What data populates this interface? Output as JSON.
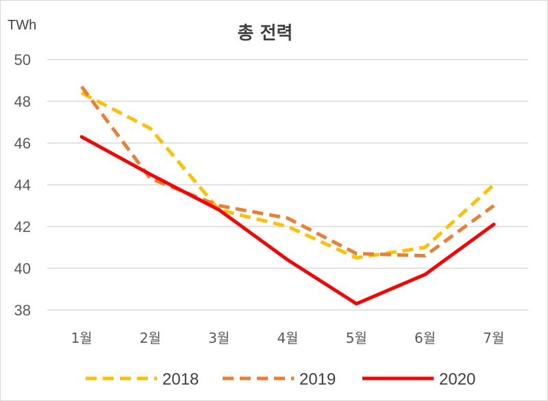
{
  "chart_data": {
    "type": "line",
    "title": "총 전력",
    "ylabel": "TWh",
    "xlabel": "",
    "ylim": [
      38,
      50
    ],
    "yticks": [
      38,
      40,
      42,
      44,
      46,
      48,
      50
    ],
    "categories": [
      "1월",
      "2월",
      "3월",
      "4월",
      "5월",
      "6월",
      "7월"
    ],
    "grid": "horizontal",
    "legend": "bottom",
    "series": [
      {
        "name": "2018",
        "color": "#ffc000",
        "style": "dashed",
        "values": [
          48.4,
          46.7,
          42.8,
          42.0,
          40.5,
          41.0,
          44.0
        ]
      },
      {
        "name": "2019",
        "color": "#ed7d31",
        "style": "dashed",
        "values": [
          48.7,
          44.3,
          43.0,
          42.4,
          40.7,
          40.6,
          43.0
        ]
      },
      {
        "name": "2020",
        "color": "#ff0000",
        "style": "solid",
        "values": [
          46.3,
          44.5,
          42.8,
          40.4,
          38.3,
          39.7,
          42.1
        ]
      }
    ]
  }
}
